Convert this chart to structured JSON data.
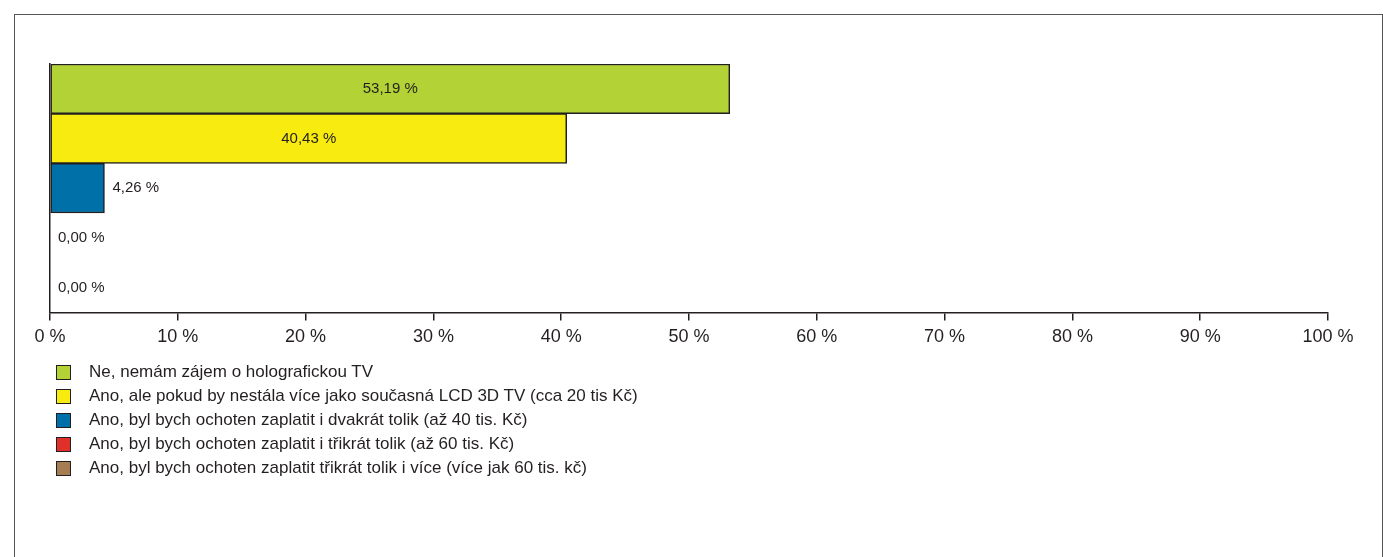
{
  "chart_data": {
    "type": "bar",
    "orientation": "horizontal",
    "categories": [
      null,
      null,
      null,
      null,
      null
    ],
    "series": [
      {
        "name": "Ne, nemám zájem o holografickou TV",
        "color": "#b2d235",
        "values": [
          53.19,
          null,
          null,
          null,
          null
        ],
        "value_labels": [
          "53,19 %",
          null,
          null,
          null,
          null
        ]
      },
      {
        "name": "Ano, ale pokud by nestála více jako současná LCD 3D TV (cca 20 tis Kč)",
        "color": "#f7eb0f",
        "values": [
          null,
          40.43,
          null,
          null,
          null
        ],
        "value_labels": [
          null,
          "40,43 %",
          null,
          null,
          null
        ]
      },
      {
        "name": "Ano, byl bych ochoten zaplatit i dvakrát tolik (až 40 tis. Kč)",
        "color": "#0070a8",
        "values": [
          null,
          null,
          4.26,
          null,
          null
        ],
        "value_labels": [
          null,
          null,
          "4,26 %",
          null,
          null
        ]
      },
      {
        "name": "Ano, byl bych ochoten zaplatit i třikrát tolik (až 60 tis. Kč)",
        "color": "#e0302a",
        "values": [
          null,
          null,
          null,
          0,
          null
        ],
        "value_labels": [
          null,
          null,
          null,
          "0,00 %",
          null
        ]
      },
      {
        "name": "Ano, byl bych ochoten zaplatit třikrát tolik i více (více jak 60 tis. kč)",
        "color": "#a67c52",
        "values": [
          null,
          null,
          null,
          null,
          0
        ],
        "value_labels": [
          null,
          null,
          null,
          null,
          "0,00 %"
        ]
      }
    ],
    "xlim": [
      0,
      100
    ],
    "xticks": [
      {
        "value": 0,
        "label": "0 %"
      },
      {
        "value": 10,
        "label": "10 %"
      },
      {
        "value": 20,
        "label": "20 %"
      },
      {
        "value": 30,
        "label": "30 %"
      },
      {
        "value": 40,
        "label": "40 %"
      },
      {
        "value": 50,
        "label": "50 %"
      },
      {
        "value": 60,
        "label": "60 %"
      },
      {
        "value": 70,
        "label": "70 %"
      },
      {
        "value": 80,
        "label": "80 %"
      },
      {
        "value": 90,
        "label": "90 %"
      },
      {
        "value": 100,
        "label": "100 %"
      }
    ],
    "grid": false,
    "legend": "bottom left"
  }
}
